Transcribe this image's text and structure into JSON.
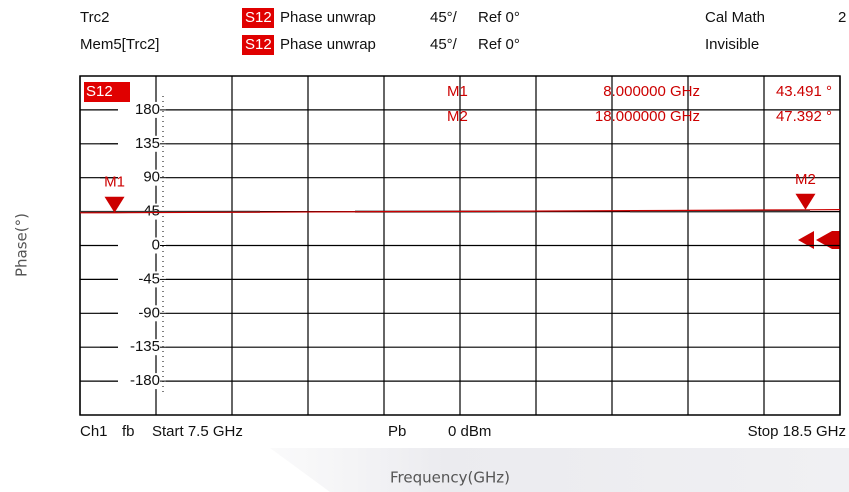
{
  "chart_data": {
    "type": "line",
    "header": [
      [
        "Trc2",
        "S12",
        "Phase unwrap",
        "45°/",
        "Ref 0°",
        "Cal Math",
        "2"
      ],
      [
        "Mem5[Trc2]",
        "S12",
        "Phase unwrap",
        "45°/",
        "Ref 0°",
        "Invisible"
      ]
    ],
    "trace_label": "S12",
    "x_label": "Frequency(GHz)",
    "y_label": "Phase(°)",
    "footer": [
      "Ch1",
      "fb",
      "Start 7.5 GHz",
      "Pb",
      "0 dBm",
      "Stop 18.5 GHz"
    ],
    "xlim": [
      7.5,
      18.5
    ],
    "xticks": [
      7.5,
      8.6,
      9.7,
      10.8,
      11.9,
      13,
      14.1,
      15.2,
      16.3,
      17.4,
      18.5
    ],
    "ylim": [
      -225,
      225
    ],
    "yticks": [
      180,
      135,
      90,
      45,
      0,
      -45,
      -90,
      -135,
      -180
    ],
    "grid": true,
    "x": [
      7.5,
      8,
      10,
      12,
      14,
      16,
      18,
      18.5
    ],
    "series": [
      {
        "name": "Trc2",
        "color": "#cc0000",
        "style": "solid",
        "values": [
          43.4,
          43.491,
          44.2,
          45.0,
          45.6,
          46.5,
          47.392,
          47.6
        ]
      },
      {
        "name": "Mem5[Trc2]",
        "color": "#333333",
        "style": "dashed",
        "values": [
          44.6,
          44.6,
          44.8,
          45.0,
          45.1,
          45.3,
          45.5,
          45.6
        ]
      }
    ],
    "markers": {
      "names": [
        "M1",
        "M2"
      ],
      "x": [
        8,
        18
      ],
      "x_labels": [
        "8.000000 GHz",
        "18.000000 GHz"
      ],
      "values": [
        43.491,
        47.392
      ],
      "value_labels": [
        "43.491 °",
        "47.392 °"
      ],
      "color": "#cc0000"
    }
  }
}
